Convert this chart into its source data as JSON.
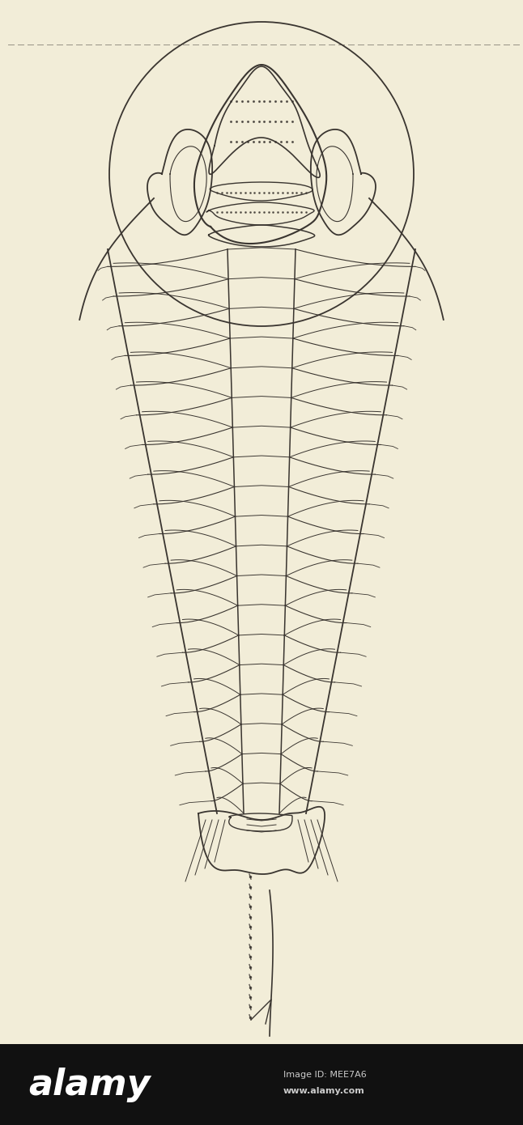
{
  "background_color": "#f2edd8",
  "line_color": "#3a3530",
  "fig_width": 6.46,
  "fig_height": 13.9,
  "dpi": 100,
  "watermark_text": "alamy",
  "image_id_text": "Image ID: MEE7A6",
  "image_url_text": "www.alamy.com"
}
